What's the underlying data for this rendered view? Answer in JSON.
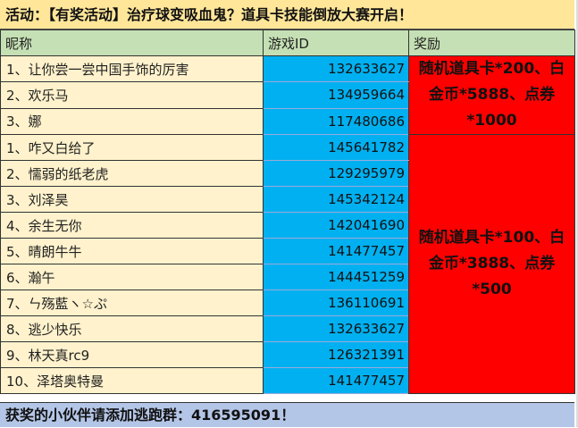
{
  "title": "活动：【有奖活动】治疗球变吸血鬼？道具卡技能倒放大赛开启！",
  "headers": {
    "name": "昵称",
    "id": "游戏ID",
    "reward": "奖励"
  },
  "rows": [
    {
      "name": "1、让你尝一尝中国手饰的厉害",
      "id": "132633627"
    },
    {
      "name": "2、欢乐马",
      "id": "134959664"
    },
    {
      "name": "3、娜",
      "id": "117480686"
    },
    {
      "name": "1、咋又白给了",
      "id": "145641782"
    },
    {
      "name": "2、懦弱的纸老虎",
      "id": "129295979"
    },
    {
      "name": "3、刘泽昊",
      "id": "145342124"
    },
    {
      "name": "4、余生无你",
      "id": "142041690"
    },
    {
      "name": "5、晴朗牛牛",
      "id": "141477457"
    },
    {
      "name": "6、瀚午",
      "id": "144451259"
    },
    {
      "name": "7、ㄣ殇藍ヽ☆ぷ",
      "id": "136110691"
    },
    {
      "name": "8、逃少快乐",
      "id": "132633627"
    },
    {
      "name": "9、林天真rc9",
      "id": "126321391"
    },
    {
      "name": "10、泽塔奥特曼",
      "id": "141477457"
    }
  ],
  "rewards": [
    "随机道具卡*200、白金币*5888、点券*1000",
    "随机道具卡*100、白金币*3888、点券*500"
  ],
  "footer": "获奖的小伙伴请添加逃跑群：416595091！",
  "colors": {
    "title_bg": "#ffe699",
    "header_bg": "#c5e0b4",
    "name_bg": "#fff2cc",
    "id_bg": "#00b0f0",
    "reward_bg": "#ff0000",
    "footer_bg": "#b4c6e7"
  }
}
